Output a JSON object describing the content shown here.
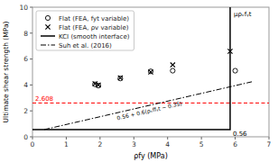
{
  "chart_data": {
    "type": "scatter",
    "title": "",
    "xlabel": "ρfy (MPa)",
    "ylabel": "Ultimate shear strength (MPa)",
    "xlim": [
      0,
      7
    ],
    "ylim": [
      0,
      10
    ],
    "xticks": [
      0,
      1,
      2,
      3,
      4,
      5,
      6,
      7
    ],
    "yticks": [
      0,
      2,
      4,
      6,
      8,
      10
    ],
    "grid": false,
    "legend": "upper left",
    "series": [
      {
        "name": "Flat (FEA, fyt variable)",
        "type": "scatter",
        "marker": "circle",
        "color": "#000000",
        "x": [
          1.85,
          1.95,
          2.6,
          3.5,
          4.15,
          6.0
        ],
        "values": [
          4.05,
          3.95,
          4.5,
          5.05,
          5.1,
          5.1
        ]
      },
      {
        "name": "Flat (FEA, ρv variable)",
        "type": "scatter",
        "marker": "cross",
        "color": "#000000",
        "x": [
          1.85,
          1.95,
          2.6,
          3.5,
          4.15,
          5.85
        ],
        "values": [
          4.1,
          4.0,
          4.55,
          5.0,
          5.55,
          6.6
        ]
      },
      {
        "name": "KCI (smooth interface)",
        "type": "line",
        "line_style": "solid",
        "color": "#000000",
        "x": [
          0,
          5.85,
          5.85
        ],
        "values": [
          0.56,
          0.56,
          10
        ],
        "annotations": [
          "0.56",
          "μρᵥfᵧt"
        ]
      },
      {
        "name": "Suh et al. (2016)",
        "type": "line",
        "line_style": "dashdot",
        "color": "#000000",
        "x": [
          0.35,
          6.5
        ],
        "values": [
          0.56,
          4.25
        ],
        "annotations": [
          "0.56 + 0.6(ρᵥffᵧt − 0.35)"
        ]
      }
    ],
    "reference_lines": [
      {
        "value": 2.608,
        "label": "2.608",
        "color": "#ff0000",
        "line_style": "dashed"
      }
    ]
  }
}
